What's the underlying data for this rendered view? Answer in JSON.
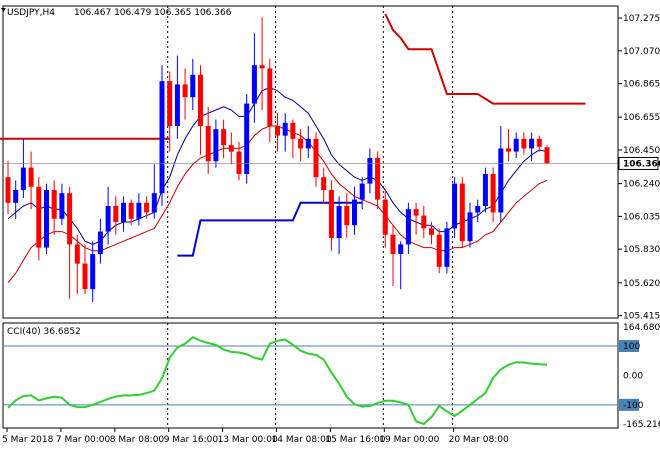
{
  "header": {
    "symbol_tf": "USDJPY,H4",
    "ohlc": "106.467 106.479 106.365 106.366",
    "cci_label": "CCI(40) 36.6852"
  },
  "colors": {
    "bull": "#0000ff",
    "bear": "#ff0000",
    "ma_fast": "#00008b",
    "ma_slow": "#cc0000",
    "level_red": "#cc0000",
    "level_blue": "#0000cc",
    "cci_line": "#32cd32",
    "cci_level": "#4682b4",
    "grid": "#000000",
    "price_tag_bg": "#ffffff"
  },
  "chart_data": [
    {
      "type": "candlestick",
      "title": "USDJPY,H4",
      "price_axis": {
        "ticks": [
          "107.275",
          "107.070",
          "106.865",
          "106.655",
          "106.450",
          "106.240",
          "106.035",
          "105.830",
          "105.620",
          "105.415"
        ],
        "ylim": [
          105.4,
          107.35
        ],
        "last_price": "106.366"
      },
      "time_axis": {
        "labels": [
          "5 Mar 2018",
          "7 Mar 00:00",
          "8 Mar 08:00",
          "9 Mar 16:00",
          "13 Mar 00:00",
          "14 Mar 08:00",
          "15 Mar 16:00",
          "19 Mar 00:00",
          "20 Mar 08:00"
        ]
      },
      "candles": [
        [
          106.28,
          106.12,
          106.38,
          106.05
        ],
        [
          106.12,
          106.2,
          106.26,
          106.02
        ],
        [
          106.2,
          106.34,
          106.52,
          106.15
        ],
        [
          106.34,
          106.22,
          106.44,
          106.08
        ],
        [
          106.22,
          105.84,
          106.28,
          105.76
        ],
        [
          105.84,
          106.2,
          106.24,
          105.8
        ],
        [
          106.2,
          106.02,
          106.26,
          105.92
        ],
        [
          106.02,
          106.18,
          106.24,
          105.98
        ],
        [
          106.18,
          105.86,
          106.22,
          105.52
        ],
        [
          105.86,
          105.74,
          105.92,
          105.55
        ],
        [
          105.74,
          105.58,
          105.86,
          105.55
        ],
        [
          105.58,
          105.8,
          105.88,
          105.5
        ],
        [
          105.8,
          105.94,
          106.02,
          105.74
        ],
        [
          105.94,
          106.1,
          106.22,
          105.86
        ],
        [
          106.1,
          106.0,
          106.16,
          105.92
        ],
        [
          106.0,
          106.12,
          106.16,
          105.94
        ],
        [
          106.12,
          106.02,
          106.14,
          105.98
        ],
        [
          106.02,
          106.12,
          106.18,
          105.98
        ],
        [
          106.12,
          106.06,
          106.16,
          106.02
        ],
        [
          106.06,
          106.18,
          106.36,
          106.02
        ],
        [
          106.18,
          106.88,
          106.98,
          106.1
        ],
        [
          106.88,
          106.6,
          106.94,
          106.44
        ],
        [
          106.6,
          106.86,
          107.04,
          106.52
        ],
        [
          106.86,
          106.78,
          106.96,
          106.64
        ],
        [
          106.78,
          106.92,
          107.02,
          106.7
        ],
        [
          106.92,
          106.6,
          106.98,
          106.42
        ],
        [
          106.6,
          106.38,
          106.72,
          106.3
        ],
        [
          106.38,
          106.58,
          106.64,
          106.34
        ],
        [
          106.58,
          106.48,
          106.64,
          106.4
        ],
        [
          106.48,
          106.44,
          106.56,
          106.36
        ],
        [
          106.44,
          106.3,
          106.5,
          106.26
        ],
        [
          106.3,
          106.74,
          106.8,
          106.24
        ],
        [
          106.74,
          106.98,
          107.18,
          106.62
        ],
        [
          106.98,
          106.96,
          107.28,
          106.7
        ],
        [
          106.96,
          106.6,
          107.02,
          106.5
        ],
        [
          106.6,
          106.54,
          106.68,
          106.44
        ],
        [
          106.54,
          106.62,
          106.68,
          106.44
        ],
        [
          106.62,
          106.52,
          106.64,
          106.4
        ],
        [
          106.52,
          106.46,
          106.58,
          106.38
        ],
        [
          106.46,
          106.52,
          106.6,
          106.4
        ],
        [
          106.52,
          106.28,
          106.56,
          106.22
        ],
        [
          106.28,
          106.2,
          106.34,
          106.12
        ],
        [
          106.2,
          105.9,
          106.26,
          105.82
        ],
        [
          105.9,
          106.1,
          106.16,
          105.8
        ],
        [
          106.1,
          105.98,
          106.18,
          105.9
        ],
        [
          105.98,
          106.14,
          106.22,
          105.92
        ],
        [
          106.14,
          106.24,
          106.28,
          106.08
        ],
        [
          106.24,
          106.4,
          106.46,
          106.18
        ],
        [
          106.4,
          106.14,
          106.44,
          106.08
        ],
        [
          106.14,
          105.92,
          106.2,
          105.84
        ],
        [
          105.92,
          105.8,
          105.98,
          105.6
        ],
        [
          105.8,
          105.86,
          105.88,
          105.58
        ],
        [
          105.86,
          106.08,
          106.12,
          105.8
        ],
        [
          106.08,
          106.04,
          106.12,
          105.92
        ],
        [
          106.04,
          105.96,
          106.1,
          105.9
        ],
        [
          105.96,
          105.92,
          106.0,
          105.86
        ],
        [
          105.92,
          105.72,
          105.96,
          105.68
        ],
        [
          105.72,
          105.96,
          106.0,
          105.68
        ],
        [
          105.96,
          106.24,
          106.28,
          105.9
        ],
        [
          106.24,
          105.88,
          106.28,
          105.84
        ],
        [
          105.88,
          106.06,
          106.12,
          105.84
        ],
        [
          106.06,
          106.1,
          106.14,
          106.0
        ],
        [
          106.1,
          106.3,
          106.34,
          106.06
        ],
        [
          106.3,
          106.06,
          106.34,
          106.0
        ],
        [
          106.06,
          106.46,
          106.6,
          106.0
        ],
        [
          106.46,
          106.44,
          106.58,
          106.38
        ],
        [
          106.44,
          106.52,
          106.56,
          106.4
        ],
        [
          106.52,
          106.46,
          106.56,
          106.42
        ],
        [
          106.46,
          106.52,
          106.56,
          106.38
        ],
        [
          106.52,
          106.47,
          106.54,
          106.44
        ],
        [
          106.467,
          106.366,
          106.479,
          106.365
        ]
      ],
      "ma_fast": [
        106.02,
        106.06,
        106.1,
        106.12,
        106.08,
        106.1,
        106.08,
        106.08,
        106.02,
        105.96,
        105.88,
        105.86,
        105.88,
        105.94,
        105.98,
        106.0,
        106.0,
        106.02,
        106.04,
        106.06,
        106.2,
        106.28,
        106.42,
        106.52,
        106.6,
        106.66,
        106.68,
        106.7,
        106.72,
        106.7,
        106.66,
        106.66,
        106.74,
        106.82,
        106.84,
        106.82,
        106.78,
        106.76,
        106.72,
        106.68,
        106.6,
        106.52,
        106.42,
        106.36,
        106.32,
        106.28,
        106.26,
        106.28,
        106.26,
        106.2,
        106.12,
        106.06,
        106.02,
        106.0,
        105.98,
        105.98,
        105.94,
        105.94,
        105.98,
        106.0,
        106.02,
        106.04,
        106.08,
        106.1,
        106.18,
        106.26,
        106.32,
        106.38,
        106.42,
        106.45,
        106.44
      ],
      "ma_slow": [
        105.62,
        105.68,
        105.76,
        105.84,
        105.88,
        105.92,
        105.94,
        105.94,
        105.92,
        105.88,
        105.84,
        105.82,
        105.82,
        105.84,
        105.86,
        105.88,
        105.9,
        105.92,
        105.94,
        105.96,
        106.04,
        106.12,
        106.22,
        106.3,
        106.36,
        106.4,
        106.42,
        106.44,
        106.46,
        106.46,
        106.46,
        106.48,
        106.54,
        106.58,
        106.6,
        106.6,
        106.58,
        106.56,
        106.54,
        106.5,
        106.44,
        106.38,
        106.3,
        106.24,
        106.2,
        106.16,
        106.14,
        106.12,
        106.1,
        106.04,
        105.98,
        105.92,
        105.88,
        105.86,
        105.84,
        105.84,
        105.82,
        105.82,
        105.84,
        105.84,
        105.86,
        105.88,
        105.92,
        105.94,
        106.0,
        106.06,
        106.12,
        106.16,
        106.2,
        106.24,
        106.26
      ],
      "levels": [
        {
          "color": "level_red",
          "points": [
            [
              -2,
              106.52
            ],
            [
              21,
              106.52
            ]
          ]
        },
        {
          "color": "level_blue",
          "points": [
            [
              22,
              105.79
            ],
            [
              24,
              105.79
            ],
            [
              25,
              106.01
            ],
            [
              37,
              106.01
            ],
            [
              38,
              106.12
            ],
            [
              46,
              106.12
            ]
          ]
        },
        {
          "color": "level_red",
          "points": [
            [
              49,
              107.3
            ],
            [
              50,
              107.2
            ],
            [
              51,
              107.15
            ],
            [
              52,
              107.08
            ],
            [
              55,
              107.08
            ],
            [
              57,
              106.8
            ],
            [
              61,
              106.8
            ],
            [
              63,
              106.74
            ],
            [
              75,
              106.74
            ]
          ]
        }
      ]
    },
    {
      "type": "line",
      "title": "CCI(40) 36.6852",
      "y_axis": {
        "ticks": [
          "164.6803",
          "100",
          "0.00",
          "-100",
          "-165.2168"
        ],
        "ylim": [
          -165.2168,
          164.6803
        ],
        "levels": [
          100,
          -100
        ]
      },
      "values": [
        -110,
        -85,
        -70,
        -68,
        -85,
        -78,
        -72,
        -76,
        -100,
        -108,
        -108,
        -100,
        -90,
        -80,
        -72,
        -68,
        -68,
        -66,
        -60,
        -52,
        -10,
        60,
        95,
        108,
        130,
        118,
        110,
        104,
        88,
        80,
        78,
        72,
        60,
        54,
        108,
        118,
        122,
        104,
        84,
        74,
        70,
        54,
        10,
        -28,
        -72,
        -98,
        -106,
        -104,
        -94,
        -86,
        -86,
        -92,
        -100,
        -156,
        -182,
        -142,
        -104,
        -122,
        -138,
        -120,
        -100,
        -80,
        -60,
        -8,
        20,
        36,
        45,
        44,
        40,
        38,
        36.6852
      ]
    }
  ]
}
